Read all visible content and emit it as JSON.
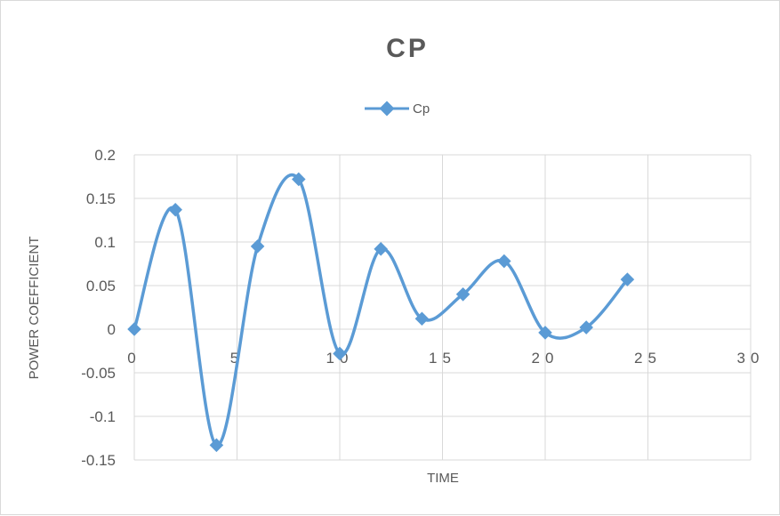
{
  "chart_data": {
    "type": "line",
    "title": "CP",
    "xlabel": "TIME",
    "ylabel": "POWER COEFFICIENT",
    "xlim": [
      0,
      30
    ],
    "ylim": [
      -0.15,
      0.2
    ],
    "xticks": [
      0,
      5,
      10,
      15,
      20,
      25,
      30
    ],
    "xtick_labels": [
      "0",
      "5",
      "10",
      "15",
      "20",
      "25",
      "30"
    ],
    "yticks": [
      -0.15,
      -0.1,
      -0.05,
      0,
      0.05,
      0.1,
      0.15,
      0.2
    ],
    "ytick_labels": [
      "-0.15",
      "-0.1",
      "-0.05",
      "0",
      "0.05",
      "0.1",
      "0.15",
      "0.2"
    ],
    "grid": true,
    "smooth": true,
    "legend": "top-center",
    "series": [
      {
        "name": "Cp",
        "color": "#5b9bd5",
        "marker": "diamond",
        "x": [
          0,
          2,
          4,
          6,
          8,
          10,
          12,
          14,
          16,
          18,
          20,
          22,
          24
        ],
        "y": [
          0,
          0.137,
          -0.133,
          0.095,
          0.172,
          -0.028,
          0.092,
          0.012,
          0.04,
          0.078,
          -0.004,
          0.002,
          0.057
        ]
      }
    ]
  }
}
